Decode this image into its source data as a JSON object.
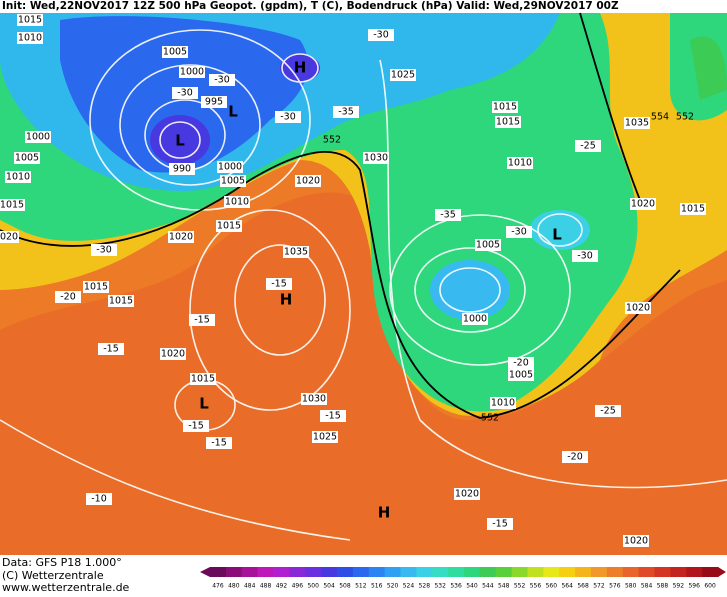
{
  "header": {
    "title": "Init: Wed,22NOV2017 12Z 500 hPa Geopot. (gpdm), T (C), Bodendruck (hPa) Valid: Wed,29NOV2017 00Z"
  },
  "footer": {
    "data": "Data: GFS P18 1.000°",
    "copyright": "(C) Wetterzentrale",
    "url": "www.wetterzentrale.de"
  },
  "map": {
    "isobar_labels": [
      "1015",
      "1010",
      "1005",
      "1000",
      "995",
      "1000",
      "1005",
      "990",
      "1000",
      "1005",
      "1010",
      "1015",
      "1010",
      "1015",
      "1020",
      "1020",
      "1025",
      "1015",
      "1015",
      "1030",
      "1010",
      "1005",
      "1000",
      "1005",
      "1010",
      "1020",
      "1015",
      "1020",
      "1035",
      "1015",
      "1015",
      "1020",
      "1015",
      "1030",
      "1025",
      "1020",
      "1020",
      "1035",
      "1020"
    ],
    "temperature_labels": [
      "-30",
      "-30",
      "-30",
      "-35",
      "-30",
      "-35",
      "-30",
      "-30",
      "-30",
      "-25",
      "-20",
      "-15",
      "-15",
      "-15",
      "-15",
      "-15",
      "-15",
      "-25",
      "-20",
      "-10",
      "-15",
      "-20"
    ],
    "pressure_centers": [
      "H",
      "L",
      "L",
      "H",
      "L",
      "H",
      "L"
    ],
    "height_labels": [
      "552",
      "552",
      "552",
      "554"
    ]
  },
  "scale": {
    "labels": [
      476,
      480,
      484,
      488,
      492,
      496,
      500,
      504,
      508,
      512,
      516,
      520,
      524,
      528,
      532,
      536,
      540,
      544,
      548,
      552,
      556,
      560,
      564,
      568,
      572,
      576,
      580,
      584,
      588,
      592,
      596,
      600
    ],
    "colors": [
      "#6a0a5a",
      "#8a0c78",
      "#a8109a",
      "#c018b8",
      "#b020d0",
      "#8a28d8",
      "#6a30e0",
      "#4838e0",
      "#2f4ee6",
      "#2a68ee",
      "#2a84f2",
      "#30a0f2",
      "#38baf0",
      "#3cd0e6",
      "#36dcc4",
      "#30dca0",
      "#2ed67c",
      "#3ccc56",
      "#58d03a",
      "#8ad82c",
      "#c0e020",
      "#e8e818",
      "#f4d010",
      "#f4b41a",
      "#f0982a",
      "#ec7e2a",
      "#e8642a",
      "#e04a28",
      "#d43424",
      "#c42420",
      "#b0161c",
      "#980c18"
    ]
  }
}
